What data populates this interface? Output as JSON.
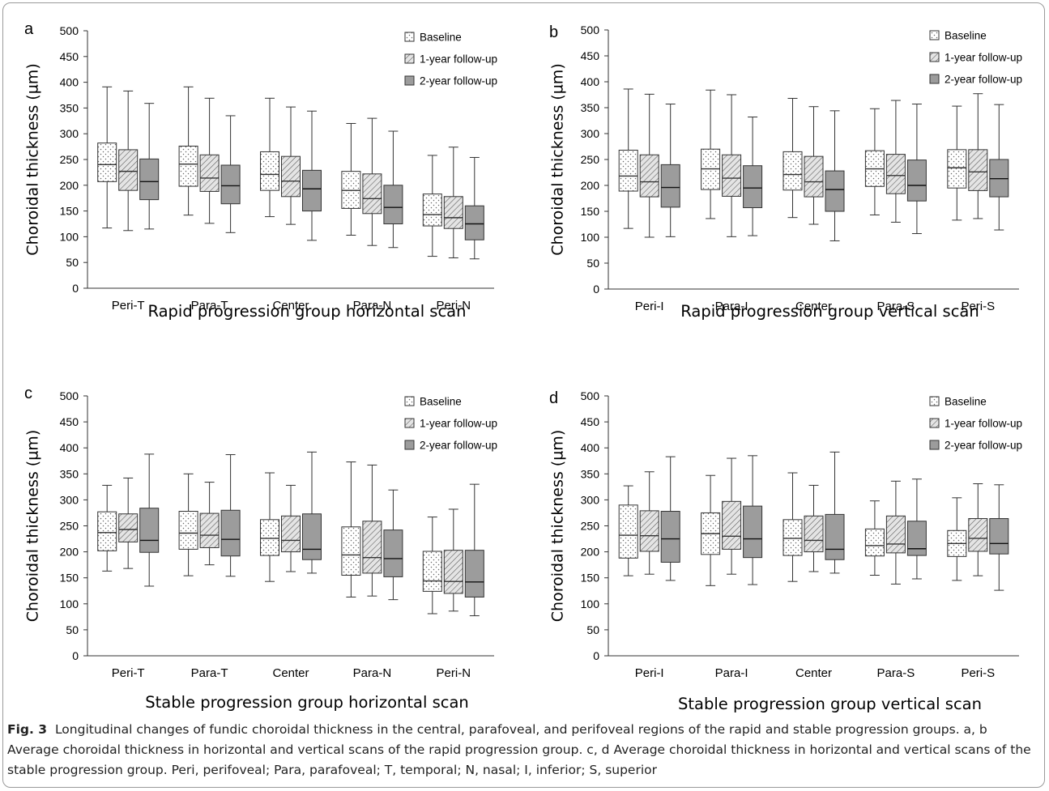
{
  "figure": {
    "caption_label": "Fig. 3",
    "caption_text": "Longitudinal changes of fundic choroidal thickness in the central, parafoveal, and perifoveal regions of the rapid and stable progression groups. a, b Average choroidal thickness in horizontal and vertical scans of the rapid progression group. c, d Average choroidal thickness in horizontal and vertical scans of the stable progression group. Peri, perifoveal; Para, parafoveal; T, temporal; N, nasal; I, inferior; S, superior"
  },
  "chart_data": [
    {
      "type": "box",
      "panel": "a",
      "xlabel": "Rapid progression group horizontal scan",
      "ylabel": "Choroidal thickness (µm)",
      "ylim": [
        0,
        500
      ],
      "yticks": [
        0,
        50,
        100,
        150,
        200,
        250,
        300,
        350,
        400,
        450,
        500
      ],
      "legend_position": "top-right",
      "categories": [
        "Peri-T",
        "Para-T",
        "Center",
        "Para-N",
        "Peri-N"
      ],
      "series": [
        {
          "name": "Baseline",
          "pattern": "dots",
          "boxes": [
            {
              "min": 117,
              "q1": 207,
              "median": 240,
              "q3": 282,
              "max": 391
            },
            {
              "min": 142,
              "q1": 198,
              "median": 241,
              "q3": 276,
              "max": 391
            },
            {
              "min": 139,
              "q1": 190,
              "median": 221,
              "q3": 265,
              "max": 369
            },
            {
              "min": 103,
              "q1": 155,
              "median": 190,
              "q3": 227,
              "max": 320
            },
            {
              "min": 62,
              "q1": 121,
              "median": 143,
              "q3": 183,
              "max": 258
            }
          ]
        },
        {
          "name": "1-year follow-up",
          "pattern": "hatch",
          "boxes": [
            {
              "min": 112,
              "q1": 190,
              "median": 227,
              "q3": 269,
              "max": 383
            },
            {
              "min": 126,
              "q1": 188,
              "median": 214,
              "q3": 259,
              "max": 369
            },
            {
              "min": 124,
              "q1": 178,
              "median": 208,
              "q3": 256,
              "max": 352
            },
            {
              "min": 83,
              "q1": 145,
              "median": 174,
              "q3": 222,
              "max": 330
            },
            {
              "min": 59,
              "q1": 116,
              "median": 137,
              "q3": 178,
              "max": 274
            }
          ]
        },
        {
          "name": "2-year follow-up",
          "pattern": "gray",
          "boxes": [
            {
              "min": 115,
              "q1": 172,
              "median": 207,
              "q3": 251,
              "max": 359
            },
            {
              "min": 108,
              "q1": 164,
              "median": 199,
              "q3": 239,
              "max": 335
            },
            {
              "min": 93,
              "q1": 150,
              "median": 193,
              "q3": 229,
              "max": 344
            },
            {
              "min": 79,
              "q1": 125,
              "median": 157,
              "q3": 200,
              "max": 305
            },
            {
              "min": 57,
              "q1": 94,
              "median": 125,
              "q3": 160,
              "max": 254
            }
          ]
        }
      ]
    },
    {
      "type": "box",
      "panel": "b",
      "xlabel": "Rapid progression group vertical scan",
      "ylabel": "Choroidal thickness (µm)",
      "ylim": [
        0,
        500
      ],
      "yticks": [
        0,
        50,
        100,
        150,
        200,
        250,
        300,
        350,
        400,
        450,
        500
      ],
      "legend_position": "top-right",
      "categories": [
        "Peri-I",
        "Para-I",
        "Center",
        "Para-S",
        "Peri-S"
      ],
      "series": [
        {
          "name": "Baseline",
          "pattern": "dots",
          "boxes": [
            {
              "min": 117,
              "q1": 189,
              "median": 218,
              "q3": 268,
              "max": 386
            },
            {
              "min": 136,
              "q1": 192,
              "median": 232,
              "q3": 270,
              "max": 384
            },
            {
              "min": 138,
              "q1": 191,
              "median": 221,
              "q3": 265,
              "max": 368
            },
            {
              "min": 143,
              "q1": 198,
              "median": 232,
              "q3": 267,
              "max": 348
            },
            {
              "min": 133,
              "q1": 195,
              "median": 234,
              "q3": 269,
              "max": 353
            }
          ]
        },
        {
          "name": "1-year follow-up",
          "pattern": "hatch",
          "boxes": [
            {
              "min": 100,
              "q1": 178,
              "median": 207,
              "q3": 259,
              "max": 376
            },
            {
              "min": 101,
              "q1": 179,
              "median": 214,
              "q3": 259,
              "max": 375
            },
            {
              "min": 125,
              "q1": 178,
              "median": 207,
              "q3": 256,
              "max": 352
            },
            {
              "min": 129,
              "q1": 184,
              "median": 219,
              "q3": 260,
              "max": 364
            },
            {
              "min": 136,
              "q1": 190,
              "median": 226,
              "q3": 269,
              "max": 377
            }
          ]
        },
        {
          "name": "2-year follow-up",
          "pattern": "gray",
          "boxes": [
            {
              "min": 101,
              "q1": 158,
              "median": 196,
              "q3": 240,
              "max": 357
            },
            {
              "min": 103,
              "q1": 157,
              "median": 195,
              "q3": 238,
              "max": 332
            },
            {
              "min": 93,
              "q1": 150,
              "median": 192,
              "q3": 228,
              "max": 344
            },
            {
              "min": 107,
              "q1": 170,
              "median": 200,
              "q3": 249,
              "max": 357
            },
            {
              "min": 114,
              "q1": 178,
              "median": 213,
              "q3": 250,
              "max": 356
            }
          ]
        }
      ]
    },
    {
      "type": "box",
      "panel": "c",
      "xlabel": "Stable progression group horizontal scan",
      "ylabel": "Choroidal thickness (µm)",
      "ylim": [
        0,
        500
      ],
      "yticks": [
        0,
        50,
        100,
        150,
        200,
        250,
        300,
        350,
        400,
        450,
        500
      ],
      "legend_position": "top-right",
      "categories": [
        "Peri-T",
        "Para-T",
        "Center",
        "Para-N",
        "Peri-N"
      ],
      "series": [
        {
          "name": "Baseline",
          "pattern": "dots",
          "boxes": [
            {
              "min": 163,
              "q1": 202,
              "median": 237,
              "q3": 277,
              "max": 328
            },
            {
              "min": 154,
              "q1": 205,
              "median": 236,
              "q3": 278,
              "max": 350
            },
            {
              "min": 143,
              "q1": 193,
              "median": 226,
              "q3": 262,
              "max": 352
            },
            {
              "min": 113,
              "q1": 155,
              "median": 194,
              "q3": 248,
              "max": 373
            },
            {
              "min": 81,
              "q1": 124,
              "median": 144,
              "q3": 201,
              "max": 267
            }
          ]
        },
        {
          "name": "1-year follow-up",
          "pattern": "hatch",
          "boxes": [
            {
              "min": 168,
              "q1": 219,
              "median": 243,
              "q3": 273,
              "max": 342
            },
            {
              "min": 175,
              "q1": 208,
              "median": 232,
              "q3": 274,
              "max": 334
            },
            {
              "min": 162,
              "q1": 200,
              "median": 222,
              "q3": 269,
              "max": 328
            },
            {
              "min": 115,
              "q1": 159,
              "median": 189,
              "q3": 259,
              "max": 367
            },
            {
              "min": 86,
              "q1": 120,
              "median": 143,
              "q3": 203,
              "max": 282
            }
          ]
        },
        {
          "name": "2-year follow-up",
          "pattern": "gray",
          "boxes": [
            {
              "min": 134,
              "q1": 199,
              "median": 222,
              "q3": 284,
              "max": 388
            },
            {
              "min": 153,
              "q1": 192,
              "median": 224,
              "q3": 280,
              "max": 387
            },
            {
              "min": 159,
              "q1": 185,
              "median": 205,
              "q3": 273,
              "max": 392
            },
            {
              "min": 108,
              "q1": 152,
              "median": 187,
              "q3": 242,
              "max": 319
            },
            {
              "min": 77,
              "q1": 113,
              "median": 142,
              "q3": 203,
              "max": 330
            }
          ]
        }
      ]
    },
    {
      "type": "box",
      "panel": "d",
      "xlabel": "Stable progression group vertical scan",
      "ylabel": "Choroidal thickness (µm)",
      "ylim": [
        0,
        500
      ],
      "yticks": [
        0,
        50,
        100,
        150,
        200,
        250,
        300,
        350,
        400,
        450,
        500
      ],
      "legend_position": "top-right",
      "categories": [
        "Peri-I",
        "Para-I",
        "Center",
        "Para-S",
        "Peri-S"
      ],
      "series": [
        {
          "name": "Baseline",
          "pattern": "dots",
          "boxes": [
            {
              "min": 154,
              "q1": 188,
              "median": 232,
              "q3": 290,
              "max": 327
            },
            {
              "min": 135,
              "q1": 195,
              "median": 235,
              "q3": 275,
              "max": 347
            },
            {
              "min": 143,
              "q1": 193,
              "median": 226,
              "q3": 262,
              "max": 352
            },
            {
              "min": 155,
              "q1": 192,
              "median": 212,
              "q3": 244,
              "max": 298
            },
            {
              "min": 145,
              "q1": 191,
              "median": 216,
              "q3": 241,
              "max": 304
            }
          ]
        },
        {
          "name": "1-year follow-up",
          "pattern": "hatch",
          "boxes": [
            {
              "min": 157,
              "q1": 201,
              "median": 231,
              "q3": 279,
              "max": 354
            },
            {
              "min": 157,
              "q1": 205,
              "median": 230,
              "q3": 297,
              "max": 380
            },
            {
              "min": 162,
              "q1": 200,
              "median": 222,
              "q3": 269,
              "max": 328
            },
            {
              "min": 138,
              "q1": 198,
              "median": 215,
              "q3": 269,
              "max": 336
            },
            {
              "min": 154,
              "q1": 201,
              "median": 226,
              "q3": 264,
              "max": 331
            }
          ]
        },
        {
          "name": "2-year follow-up",
          "pattern": "gray",
          "boxes": [
            {
              "min": 145,
              "q1": 180,
              "median": 225,
              "q3": 278,
              "max": 383
            },
            {
              "min": 137,
              "q1": 189,
              "median": 225,
              "q3": 288,
              "max": 385
            },
            {
              "min": 159,
              "q1": 185,
              "median": 205,
              "q3": 272,
              "max": 392
            },
            {
              "min": 148,
              "q1": 193,
              "median": 206,
              "q3": 259,
              "max": 340
            },
            {
              "min": 126,
              "q1": 196,
              "median": 216,
              "q3": 264,
              "max": 329
            }
          ]
        }
      ]
    }
  ],
  "colors": {
    "gray_fill": "#9c9c9c",
    "hatch_bg": "#e4e4e4",
    "dot_color": "#666666",
    "stroke": "#333333"
  }
}
